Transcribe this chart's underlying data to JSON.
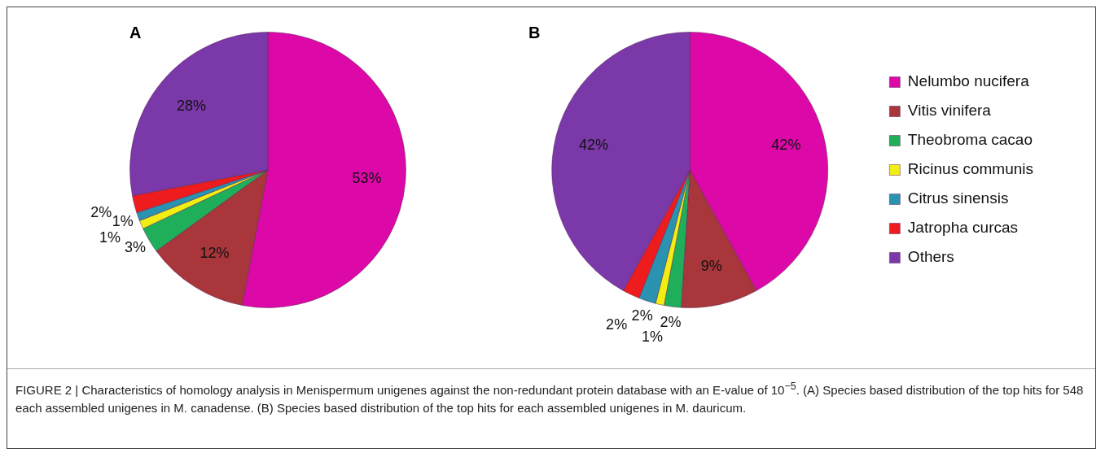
{
  "chart_data": [
    {
      "type": "pie",
      "title": "A",
      "categories": [
        null,
        null,
        null,
        null,
        null,
        null,
        null
      ],
      "values": [
        53,
        12,
        3,
        1,
        1,
        2,
        28
      ],
      "value_labels": [
        "53%",
        "12%",
        "3%",
        "1%",
        "1%",
        "2%",
        "28%"
      ],
      "colors": [
        "#dc08a8",
        "#a8363a",
        "#1faf5a",
        "#f2ee14",
        "#2a93b0",
        "#ee1c1c",
        "#7a38a8"
      ],
      "legend": false
    },
    {
      "type": "pie",
      "title": "B",
      "categories": [
        "Nelumbo nucifera",
        "Vitis vinifera",
        "Theobroma cacao",
        "Ricinus communis",
        "Citrus sinensis",
        "Jatropha curcas",
        "Others"
      ],
      "values": [
        42,
        9,
        2,
        1,
        2,
        2,
        42
      ],
      "value_labels": [
        "42%",
        "9%",
        "2%",
        "1%",
        "2%",
        "2%",
        "42%"
      ],
      "colors": [
        "#dc08a8",
        "#a8363a",
        "#1faf5a",
        "#f2ee14",
        "#2a93b0",
        "#ee1c1c",
        "#7a38a8"
      ],
      "legend": "right",
      "annotations": [
        "FIGURE 2 | Characteristics of homology analysis in Menispermum unigenes against the non-redundant protein database with an E-value of 10$^{−5}$. (A) Species based distribution of the top hits for 548 each assembled unigenes in M. canadense. (B) Species based distribution of the top hits for each assembled unigenes in M. dauricum."
      ]
    }
  ]
}
